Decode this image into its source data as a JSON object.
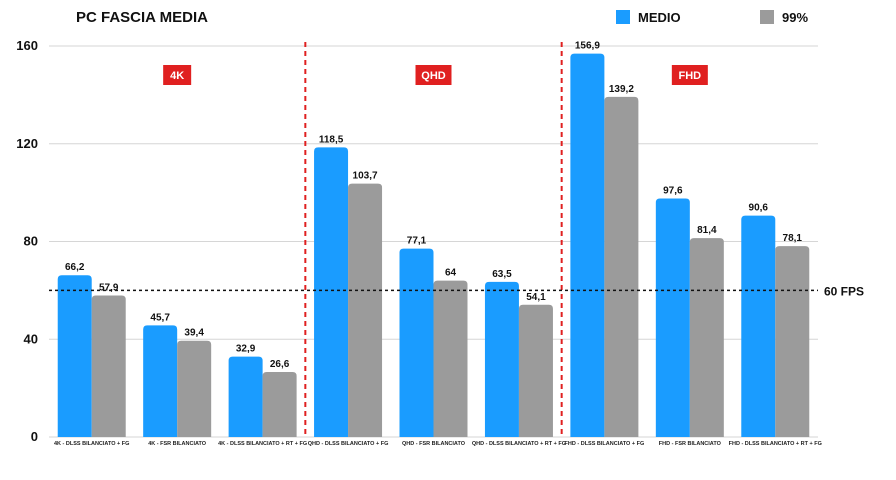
{
  "chart_data": {
    "type": "bar",
    "title": "PC FASCIA MEDIA",
    "categories": [
      "4K - DLSS BILANCIATO + FG",
      "4K - FSR BILANCIATO",
      "4K - DLSS BILANCIATO + RT + FG",
      "QHD - DLSS BILANCIATO + FG",
      "QHD - FSR BILANCIATO",
      "QHD - DLSS BILANCIATO + RT + FG",
      "FHD - DLSS BILANCIATO + FG",
      "FHD - FSR BILANCIATO",
      "FHD - DLSS BILANCIATO + RT + FG"
    ],
    "series": [
      {
        "name": "MEDIO",
        "color": "#1a9cff",
        "values": [
          66.2,
          45.7,
          32.9,
          118.5,
          77.1,
          63.5,
          156.9,
          97.6,
          90.6
        ],
        "labels": [
          "66,2",
          "45,7",
          "32,9",
          "118,5",
          "77,1",
          "63,5",
          "156,9",
          "97,6",
          "90,6"
        ]
      },
      {
        "name": "99%",
        "color": "#9b9b9b",
        "values": [
          57.9,
          39.4,
          26.6,
          103.7,
          64,
          54.1,
          139.2,
          81.4,
          78.1
        ],
        "labels": [
          "57,9",
          "39,4",
          "26,6",
          "103,7",
          "64",
          "54,1",
          "139,2",
          "81,4",
          "78,1"
        ]
      }
    ],
    "ylim": [
      0,
      160
    ],
    "yticks": [
      "0",
      "40",
      "80",
      "120",
      "160"
    ],
    "ytick_values": [
      0,
      40,
      80,
      120,
      160
    ],
    "grid": true,
    "legend": "top-right",
    "groups": [
      {
        "label": "4K",
        "color": "#e02020"
      },
      {
        "label": "QHD",
        "color": "#e02020"
      },
      {
        "label": "FHD",
        "color": "#e02020"
      }
    ],
    "reference_line": {
      "value": 60,
      "label": "60 FPS"
    }
  }
}
